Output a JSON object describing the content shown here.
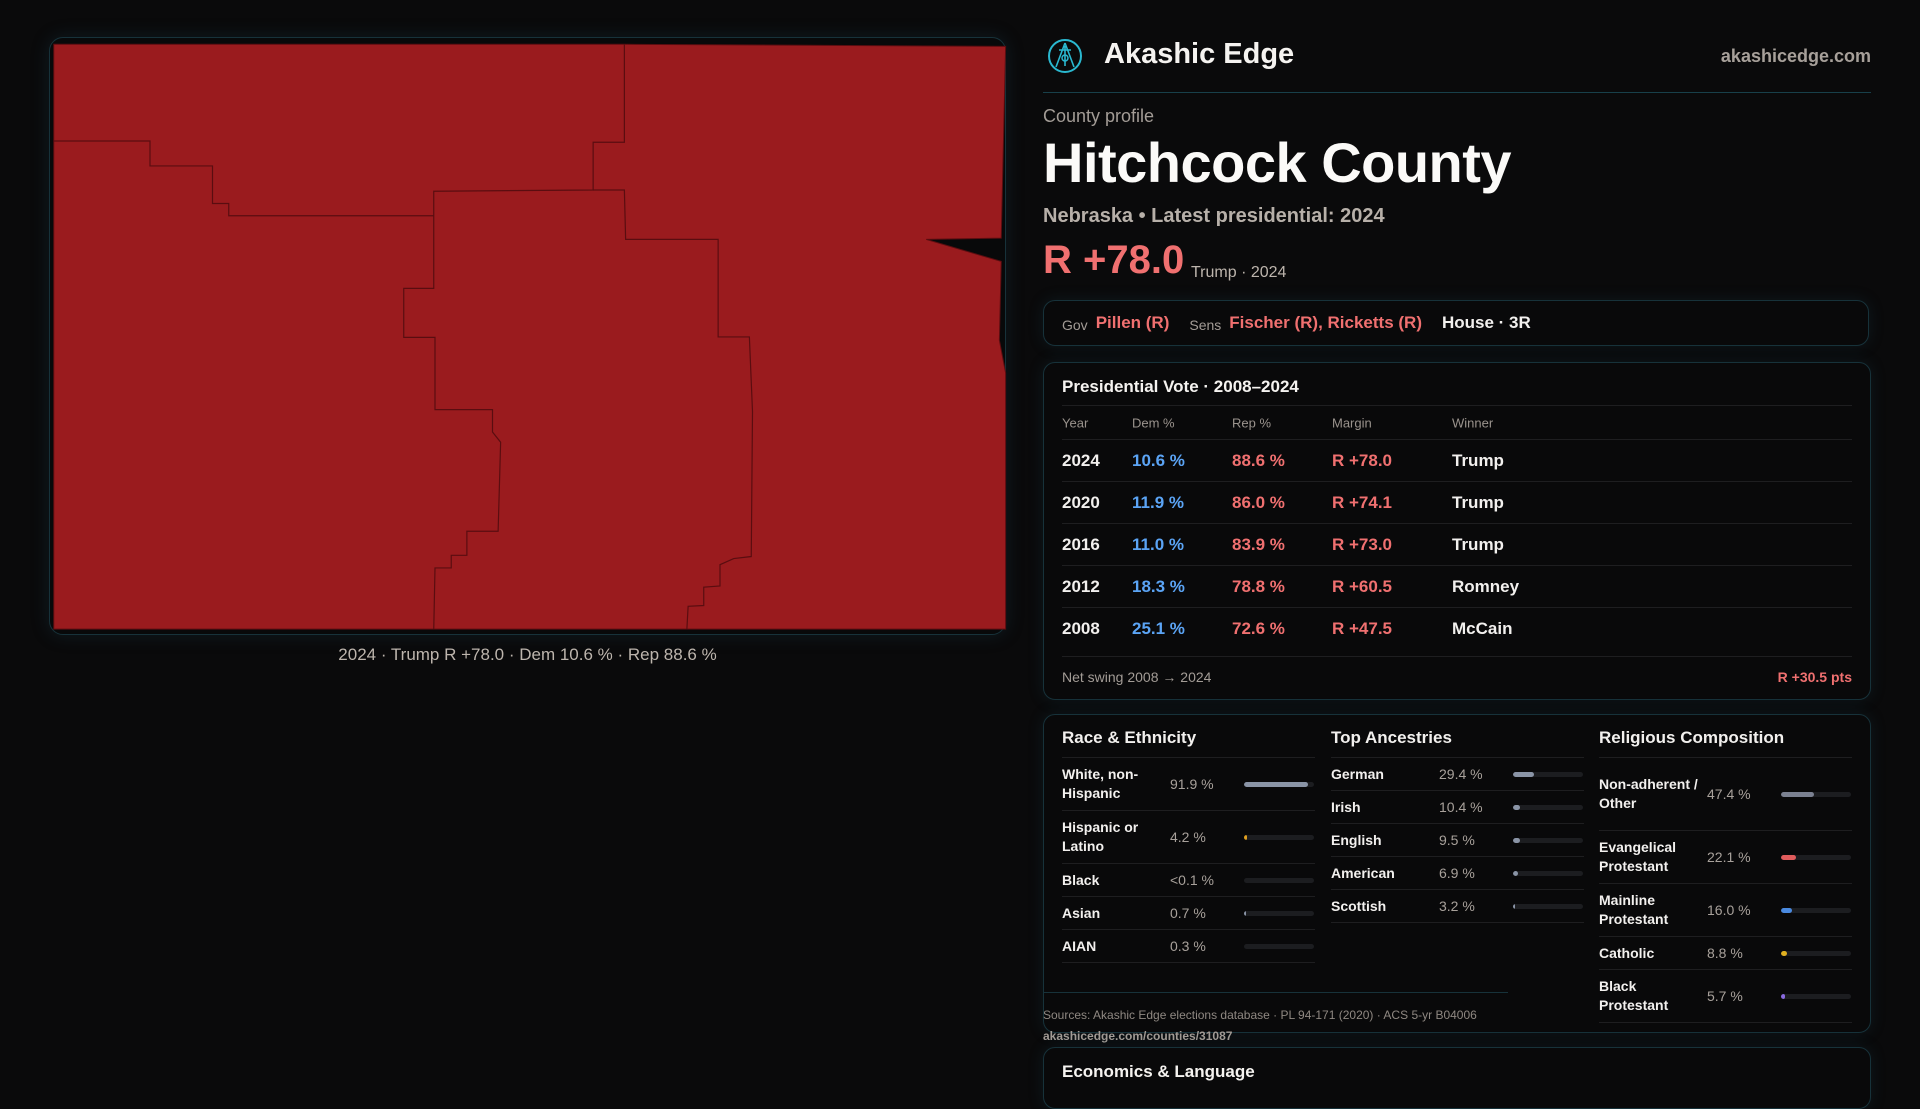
{
  "map": {
    "fill_color": "#9a1b1e",
    "caption": "2024 · Trump R +78.0 · Dem 10.6 % · Rep 88.6 %"
  },
  "header": {
    "brand": "Akashic Edge",
    "site": "akashicedge.com",
    "logo_icon": "compass-key-emblem-icon"
  },
  "profile": {
    "eyebrow": "County profile",
    "title": "Hitchcock County",
    "subtitle": "Nebraska • Latest presidential: 2024",
    "margin": "R +78.0",
    "margin_note": "Trump · 2024"
  },
  "officials": {
    "gov_label": "Gov",
    "gov": "Pillen (R)",
    "sens_label": "Sens",
    "sens": "Fischer (R), Ricketts (R)",
    "house": "House · 3R"
  },
  "presidential": {
    "title": "Presidential Vote · 2008–2024",
    "columns": [
      "Year",
      "Dem %",
      "Rep %",
      "Margin",
      "Winner"
    ],
    "rows": [
      [
        "2024",
        "10.6 %",
        "88.6 %",
        "R +78.0",
        "Trump"
      ],
      [
        "2020",
        "11.9 %",
        "86.0 %",
        "R +74.1",
        "Trump"
      ],
      [
        "2016",
        "11.0 %",
        "83.9 %",
        "R +73.0",
        "Trump"
      ],
      [
        "2012",
        "18.3 %",
        "78.8 %",
        "R +60.5",
        "Romney"
      ],
      [
        "2008",
        "25.1 %",
        "72.6 %",
        "R +47.5",
        "McCain"
      ]
    ],
    "swing_label": "Net swing 2008 → 2024",
    "swing_value": "R +30.5 pts"
  },
  "demographics": [
    {
      "title": "Race & Ethnicity",
      "rows": [
        {
          "label": "White, non-Hispanic",
          "value": "91.9 %",
          "pct": 91.9,
          "color": "#8a94a6"
        },
        {
          "label": "Hispanic or Latino",
          "value": "4.2 %",
          "pct": 4.2,
          "color": "#e0a020"
        },
        {
          "label": "Black",
          "value": "<0.1 %",
          "pct": 0.05,
          "color": "#8a94a6"
        },
        {
          "label": "Asian",
          "value": "0.7 %",
          "pct": 0.7,
          "color": "#8a94a6"
        },
        {
          "label": "AIAN",
          "value": "0.3 %",
          "pct": 0.3,
          "color": "#8a94a6"
        }
      ]
    },
    {
      "title": "Top Ancestries",
      "rows": [
        {
          "label": "German",
          "value": "29.4 %",
          "pct": 29.4,
          "color": "#8a94a6"
        },
        {
          "label": "Irish",
          "value": "10.4 %",
          "pct": 10.4,
          "color": "#8a94a6"
        },
        {
          "label": "English",
          "value": "9.5 %",
          "pct": 9.5,
          "color": "#8a94a6"
        },
        {
          "label": "American",
          "value": "6.9 %",
          "pct": 6.9,
          "color": "#8a94a6"
        },
        {
          "label": "Scottish",
          "value": "3.2 %",
          "pct": 3.2,
          "color": "#8a94a6"
        }
      ]
    },
    {
      "title": "Religious Composition",
      "rows": [
        {
          "label": "Non-adherent / Other",
          "value": "47.4 %",
          "pct": 47.4,
          "color": "#7b8191"
        },
        {
          "label": "Evangelical Protestant",
          "value": "22.1 %",
          "pct": 22.1,
          "color": "#e05c5c"
        },
        {
          "label": "Mainline Protestant",
          "value": "16.0 %",
          "pct": 16.0,
          "color": "#4a8ae0"
        },
        {
          "label": "Catholic",
          "value": "8.8 %",
          "pct": 8.8,
          "color": "#e0b020"
        },
        {
          "label": "Black Protestant",
          "value": "5.7 %",
          "pct": 5.7,
          "color": "#8a6ae0"
        }
      ]
    }
  ],
  "sources": {
    "text": "Sources: Akashic Edge elections database · PL 94-171 (2020) · ACS 5-yr B04006",
    "url": "akashicedge.com/counties/31087"
  },
  "economics": {
    "title": "Economics & Language"
  }
}
